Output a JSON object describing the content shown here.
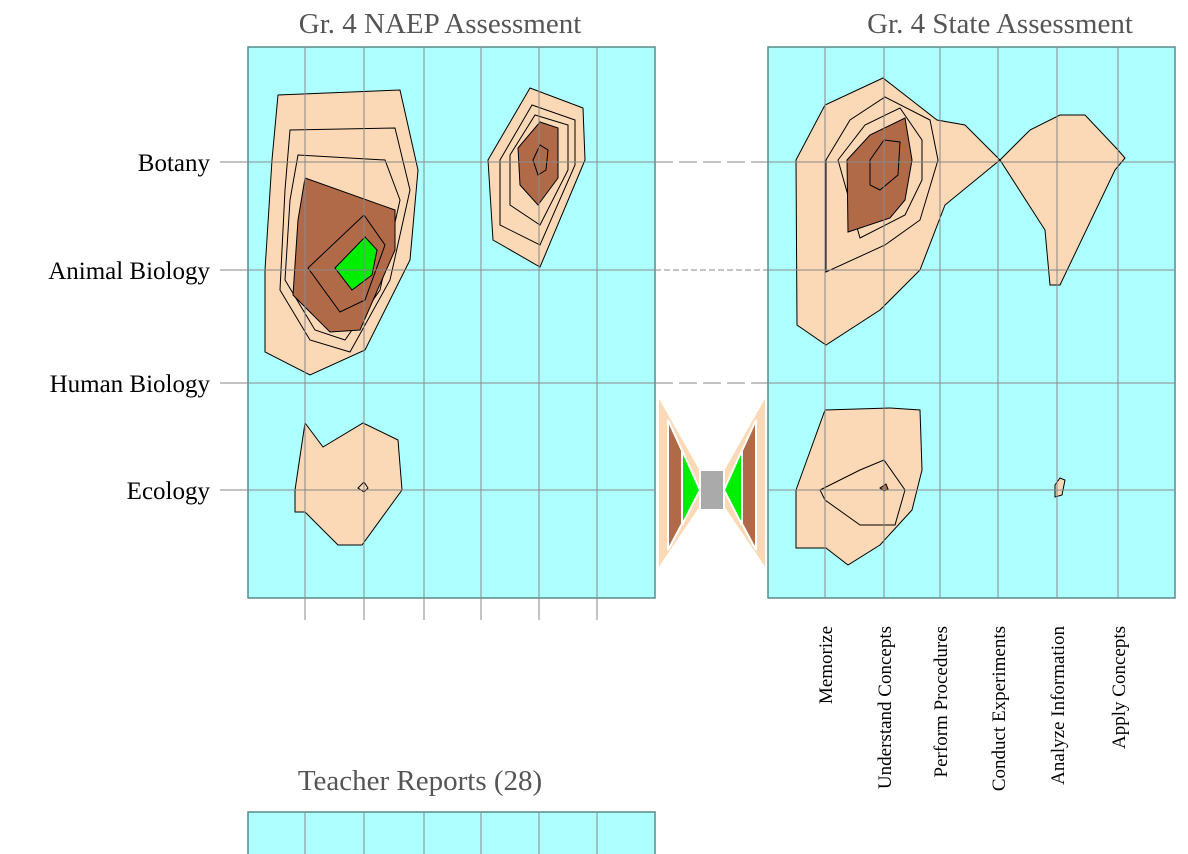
{
  "titles": [
    "Gr.  4 NAEP Assessment",
    "Gr.  4 State Assessment",
    "Teacher Reports (28)"
  ],
  "rows": [
    "Botany",
    "Animal Biology",
    "Human Biology",
    "Ecology"
  ],
  "columns": [
    "Memorize",
    "Understand Concepts",
    "Perform Procedures",
    "Conduct Experiments",
    "Analyze Information",
    "Apply Concepts"
  ]
}
